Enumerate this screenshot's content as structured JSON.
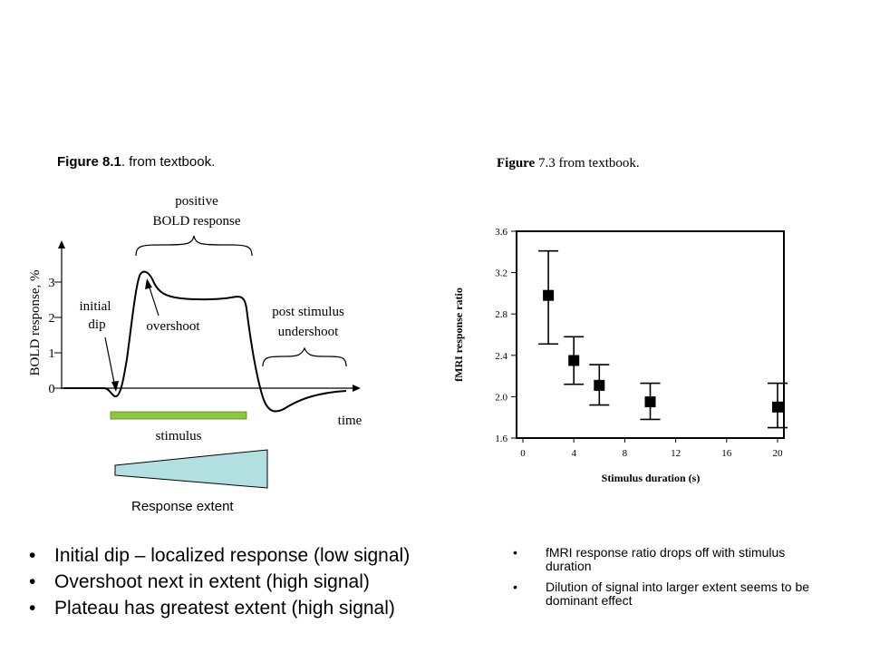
{
  "left_figure": {
    "caption_bold": "Figure 8.1",
    "caption_rest": ". from textbook.",
    "ylabel": "BOLD response, %",
    "yticks": [
      "0",
      "1",
      "2",
      "3"
    ],
    "xlabel": "time",
    "annotations": {
      "positive_line1": "positive",
      "positive_line2": "BOLD response",
      "initial_line1": "initial",
      "initial_line2": "dip",
      "overshoot": "overshoot",
      "post_line1": "post stimulus",
      "post_line2": "undershoot"
    },
    "stimulus_label": "stimulus",
    "stimulus_color": "#8dc63f",
    "extent_label": "Response extent",
    "extent_color": "#b2dfe0"
  },
  "chart_data": {
    "type": "scatter",
    "title": "",
    "xlabel": "Stimulus duration (s)",
    "ylabel": "fMRI response ratio",
    "xlim": [
      0,
      20
    ],
    "ylim": [
      1.6,
      3.6
    ],
    "xticks": [
      0,
      4,
      8,
      12,
      16,
      20
    ],
    "yticks": [
      1.6,
      2.0,
      2.4,
      2.8,
      3.2,
      3.6
    ],
    "grid": false,
    "points": [
      {
        "x": 2,
        "y": 2.98,
        "low": 2.51,
        "high": 3.41
      },
      {
        "x": 4,
        "y": 2.35,
        "low": 2.12,
        "high": 2.58
      },
      {
        "x": 6,
        "y": 2.11,
        "low": 1.92,
        "high": 2.31
      },
      {
        "x": 10,
        "y": 1.95,
        "low": 1.78,
        "high": 2.13
      },
      {
        "x": 20,
        "y": 1.9,
        "low": 1.7,
        "high": 2.13
      }
    ]
  },
  "right_figure": {
    "caption_bold": "Figure",
    "caption_rest": " 7.3 from textbook."
  },
  "bullets_left": [
    "Initial dip – localized response (low signal)",
    "Overshoot next in extent (high signal)",
    "Plateau has greatest extent (high signal)"
  ],
  "bullets_right": [
    "fMRI response ratio drops off with stimulus duration",
    "Dilution of signal into larger extent seems to be dominant effect"
  ]
}
